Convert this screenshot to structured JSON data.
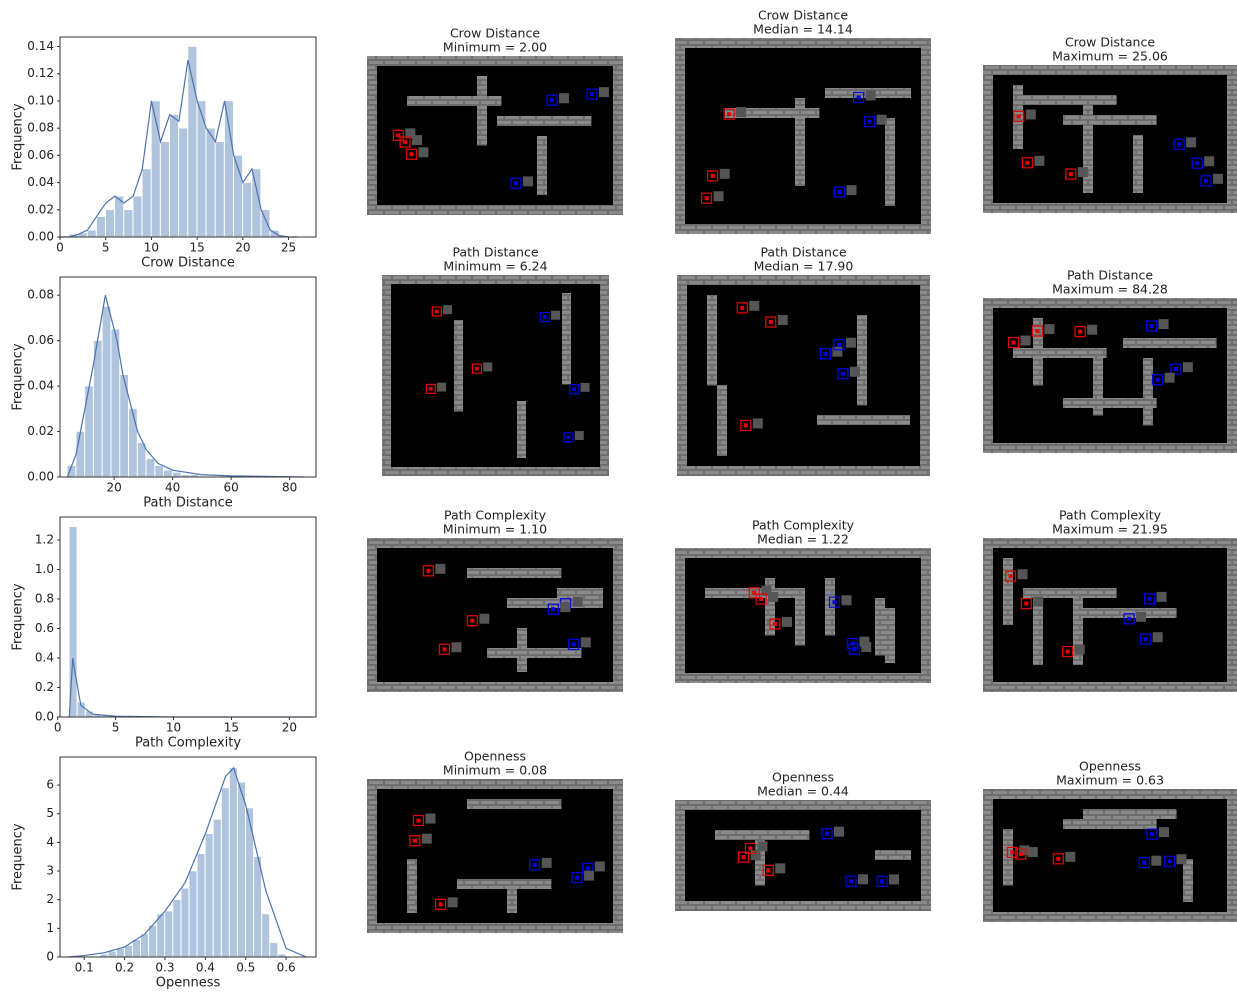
{
  "chart_data": [
    {
      "type": "histogram",
      "xlabel": "Crow Distance",
      "ylabel": "Frequency",
      "color": "#b0c4de",
      "line_color": "#4c72b0",
      "bins": [
        1,
        2,
        3,
        4,
        5,
        6,
        7,
        8,
        9,
        10,
        11,
        12,
        13,
        14,
        15,
        16,
        17,
        18,
        19,
        20,
        21,
        22,
        23,
        24
      ],
      "counts": [
        0.002,
        0.003,
        0.005,
        0.015,
        0.02,
        0.03,
        0.02,
        0.03,
        0.05,
        0.1,
        0.07,
        0.09,
        0.08,
        0.14,
        0.1,
        0.08,
        0.07,
        0.1,
        0.06,
        0.04,
        0.05,
        0.02,
        0.005
      ],
      "kde": {
        "x": [
          0,
          1,
          2,
          3,
          4,
          5,
          6,
          7,
          8,
          9,
          10,
          11,
          12,
          13,
          14,
          15,
          16,
          17,
          18,
          19,
          20,
          21,
          22,
          23,
          24,
          25,
          26
        ],
        "values": [
          0,
          0,
          0.002,
          0.005,
          0.015,
          0.025,
          0.03,
          0.025,
          0.03,
          0.05,
          0.1,
          0.07,
          0.09,
          0.085,
          0.13,
          0.1,
          0.08,
          0.07,
          0.1,
          0.06,
          0.04,
          0.05,
          0.02,
          0.005,
          0.001,
          0,
          0
        ]
      },
      "xlim": [
        0,
        28
      ],
      "ylim": [
        0,
        0.147
      ],
      "xticks": [
        0,
        5,
        10,
        15,
        20,
        25
      ],
      "yticks": [
        {
          "value": 0,
          "label": "0.00"
        },
        {
          "value": 0.02,
          "label": "0.02"
        },
        {
          "value": 0.04,
          "label": "0.04"
        },
        {
          "value": 0.06,
          "label": "0.06"
        },
        {
          "value": 0.08,
          "label": "0.08"
        },
        {
          "value": 0.1,
          "label": "0.10"
        },
        {
          "value": 0.12,
          "label": "0.12"
        },
        {
          "value": 0.14,
          "label": "0.14"
        }
      ]
    },
    {
      "type": "histogram",
      "xlabel": "Path Distance",
      "ylabel": "Frequency",
      "color": "#b0c4de",
      "line_color": "#4c72b0",
      "bins": [
        4,
        7,
        10,
        13,
        16,
        19,
        22,
        25,
        28,
        31,
        34,
        37,
        40,
        43,
        46,
        49
      ],
      "counts": [
        0.005,
        0.02,
        0.04,
        0.06,
        0.075,
        0.065,
        0.045,
        0.03,
        0.015,
        0.008,
        0.005,
        0.003,
        0.002,
        0.001,
        0.001
      ],
      "kde": {
        "x": [
          4,
          7,
          10,
          13,
          15,
          17,
          19,
          21,
          23,
          25,
          28,
          31,
          35,
          40,
          50,
          60,
          85
        ],
        "values": [
          0,
          0.01,
          0.03,
          0.05,
          0.065,
          0.08,
          0.07,
          0.06,
          0.045,
          0.035,
          0.02,
          0.012,
          0.006,
          0.003,
          0.001,
          0.0005,
          0
        ]
      },
      "xlim": [
        1.5,
        89
      ],
      "ylim": [
        0,
        0.088
      ],
      "xticks": [
        20,
        40,
        60,
        80
      ],
      "yticks": [
        {
          "value": 0,
          "label": "0.00"
        },
        {
          "value": 0.02,
          "label": "0.02"
        },
        {
          "value": 0.04,
          "label": "0.04"
        },
        {
          "value": 0.06,
          "label": "0.06"
        },
        {
          "value": 0.08,
          "label": "0.08"
        }
      ]
    },
    {
      "type": "histogram",
      "xlabel": "Path Complexity",
      "ylabel": "Frequency",
      "color": "#b0c4de",
      "line_color": "#4c72b0",
      "bins": [
        1.0,
        1.7,
        2.4,
        3.1,
        3.8,
        4.5
      ],
      "counts": [
        1.29,
        0.1,
        0.04,
        0.02,
        0.01
      ],
      "kde": {
        "x": [
          1,
          1.3,
          1.5,
          2,
          3,
          5,
          10,
          22
        ],
        "values": [
          0,
          0.4,
          0.3,
          0.08,
          0.02,
          0.005,
          0,
          0
        ]
      },
      "xlim": [
        0.2,
        22.3
      ],
      "ylim": [
        0,
        1.356
      ],
      "xticks": [
        0,
        5,
        10,
        15,
        20
      ],
      "yticks": [
        {
          "value": 0,
          "label": "0.0"
        },
        0.2,
        0.4,
        0.6,
        0.8,
        {
          "value": 1,
          "label": "1.0"
        },
        1.2
      ]
    },
    {
      "type": "histogram",
      "xlabel": "Openness",
      "ylabel": "Frequency",
      "color": "#b0c4de",
      "line_color": "#4c72b0",
      "bins": [
        0.14,
        0.16,
        0.18,
        0.2,
        0.22,
        0.24,
        0.26,
        0.28,
        0.3,
        0.32,
        0.34,
        0.36,
        0.38,
        0.4,
        0.42,
        0.44,
        0.46,
        0.48,
        0.5,
        0.52,
        0.54,
        0.56,
        0.58,
        0.6
      ],
      "counts": [
        0.1,
        0.2,
        0.3,
        0.4,
        0.6,
        0.8,
        1.1,
        1.5,
        1.6,
        2.0,
        2.4,
        3.0,
        3.6,
        4.3,
        4.8,
        5.9,
        6.6,
        6.1,
        5.2,
        3.5,
        1.5,
        0.5,
        0.1
      ],
      "kde": {
        "x": [
          0.06,
          0.1,
          0.15,
          0.2,
          0.25,
          0.3,
          0.35,
          0.4,
          0.45,
          0.47,
          0.5,
          0.55,
          0.6,
          0.65
        ],
        "values": [
          0,
          0.05,
          0.15,
          0.35,
          0.8,
          1.6,
          2.6,
          4.3,
          6.3,
          6.6,
          5.3,
          2.3,
          0.3,
          0
        ]
      },
      "xlim": [
        0.04,
        0.674
      ],
      "ylim": [
        0,
        6.98
      ],
      "xticks": [
        0.1,
        0.2,
        0.3,
        0.4,
        0.5,
        0.6
      ],
      "yticks": [
        0,
        1,
        2,
        3,
        4,
        5,
        6
      ]
    }
  ],
  "panels": [
    {
      "title": "Crow Distance",
      "subtitle": "Minimum = 2.00"
    },
    {
      "title": "Crow Distance",
      "subtitle": "Median = 14.14"
    },
    {
      "title": "Crow Distance",
      "subtitle": "Maximum = 25.06"
    },
    {
      "title": "Path Distance",
      "subtitle": "Minimum = 6.24"
    },
    {
      "title": "Path Distance",
      "subtitle": "Median = 17.90"
    },
    {
      "title": "Path Distance",
      "subtitle": "Maximum = 84.28"
    },
    {
      "title": "Path Complexity",
      "subtitle": "Minimum = 1.10"
    },
    {
      "title": "Path Complexity",
      "subtitle": "Median = 1.22"
    },
    {
      "title": "Path Complexity",
      "subtitle": "Maximum = 21.95"
    },
    {
      "title": "Openness",
      "subtitle": "Minimum = 0.08"
    },
    {
      "title": "Openness",
      "subtitle": "Median = 0.44"
    },
    {
      "title": "Openness",
      "subtitle": "Maximum = 0.63"
    }
  ]
}
